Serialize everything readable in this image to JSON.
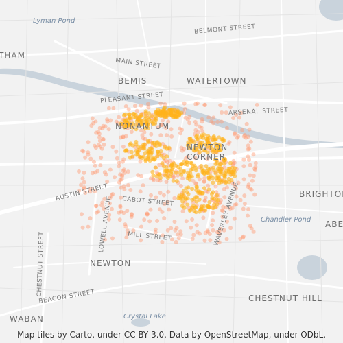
{
  "map": {
    "water_labels": {
      "lyman_pond": "Lyman Pond",
      "chandler_pond": "Chandler Pond",
      "crystal_lake": "Crystal Lake"
    },
    "place_labels": {
      "waltham": "THAM",
      "bemis": "BEMIS",
      "watertown": "WATERTOWN",
      "nonantum": "NONANTUM",
      "newton_corner_1": "NEWTON",
      "newton_corner_2": "CORNER",
      "brighton": "BRIGHTON",
      "aberdeen": "ABE",
      "newton": "NEWTON",
      "chestnut_hill": "CHESTNUT HILL",
      "waban": "WABAN"
    },
    "road_labels": {
      "belmont_street": "BELMONT STREET",
      "main_street": "MAIN STREET",
      "pleasant_street": "PLEASANT STREET",
      "arsenal_street": "ARSENAL STREET",
      "austin_street": "AUSTIN STREET",
      "cabot_street": "CABOT STREET",
      "mill_street": "MILL STREET",
      "lowell_avenue": "LOWELL AVENUE",
      "waverley_avenue": "WAVERLEY AVENUE",
      "chestnut_street": "CHESTNUT STREET",
      "beacon_street": "BEACON STREET"
    },
    "attribution": "Map tiles by Carto, under CC BY 3.0. Data by OpenStreetMap, under ODbL.",
    "colors": {
      "background": "#f2f2f2",
      "roads": "#ffffff",
      "water": "#c9d3dc",
      "hotspot": "#ffb31a",
      "points": "#ff9a70"
    }
  }
}
